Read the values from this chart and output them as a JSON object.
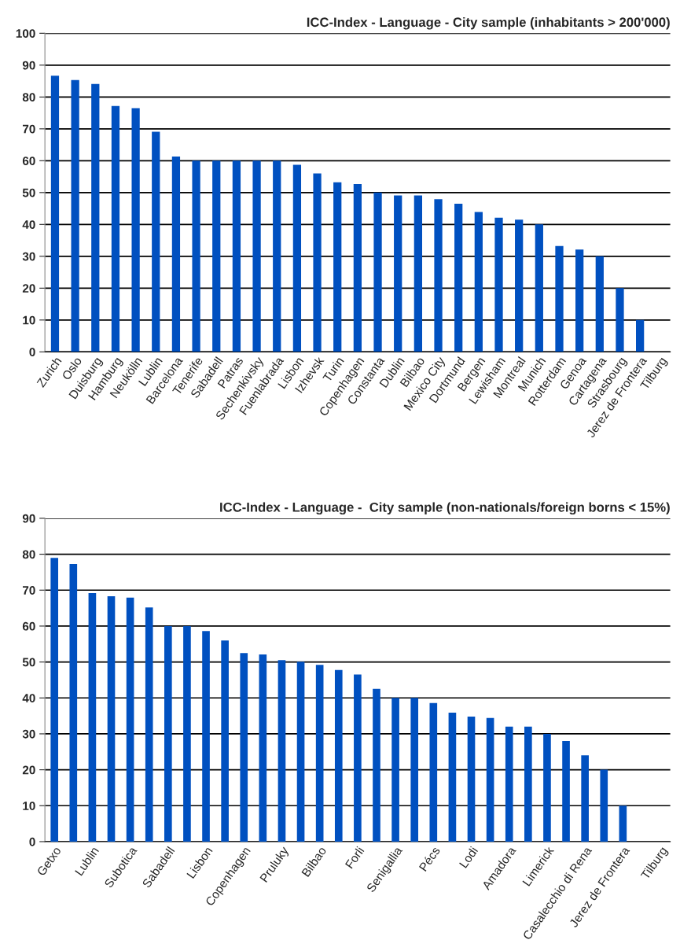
{
  "chart_data": [
    {
      "type": "bar",
      "title": "ICC-Index - Language - City sample (inhabitants > 200'000)",
      "categories": [
        "Zurich",
        "Oslo",
        "Duisburg",
        "Hamburg",
        "Neukölln",
        "Lublin",
        "Barcelona",
        "Tenerife",
        "Sabadell",
        "Patras",
        "Sechenkivsky",
        "Fuenlabrada",
        "Lisbon",
        "Izhevsk",
        "Turin",
        "Copenhagen",
        "Constanta",
        "Dublin",
        "Bilbao",
        "Mexico City",
        "Dortmund",
        "Bergen",
        "Lewisham",
        "Montreal",
        "Munich",
        "Rotterdam",
        "Genoa",
        "Cartagena",
        "Strasbourg",
        "Jerez de Frontera",
        "Tilburg"
      ],
      "values": [
        86.7,
        85.3,
        84.1,
        77.2,
        76.5,
        69.1,
        61.3,
        60,
        60,
        60,
        60,
        60,
        58.7,
        56,
        53.2,
        52.7,
        50,
        49.1,
        49.1,
        47.9,
        46.5,
        43.9,
        42.1,
        41.5,
        40,
        33.2,
        32.1,
        30,
        20,
        10,
        0
      ],
      "color": "#0050c0",
      "ylim": [
        0,
        100
      ],
      "yticks": [
        0,
        10,
        20,
        30,
        40,
        50,
        60,
        70,
        80,
        90,
        100
      ],
      "grid": "y"
    },
    {
      "type": "bar",
      "title": "ICC-Index - Language -  City sample (non-nationals/foreign borns < 15%)",
      "categories": [
        "Getxo",
        null,
        "Lublin",
        null,
        "Subotica",
        null,
        "Sabadell",
        null,
        "Lisbon",
        null,
        "Copenhagen",
        null,
        "Pruluky",
        null,
        "Bilbao",
        null,
        "Forli",
        null,
        "Senigallia",
        null,
        "Pécs",
        null,
        "Lodi",
        null,
        "Amadora",
        null,
        "Limerick",
        null,
        "Casalecchio di Rena",
        null,
        "Jerez de Frontera",
        null,
        "Tilburg"
      ],
      "values": [
        79,
        77.3,
        69.2,
        68.3,
        67.9,
        65.2,
        60,
        60,
        58.6,
        56,
        52.5,
        52.1,
        50.5,
        50.1,
        49.2,
        47.8,
        46.5,
        42.5,
        40,
        40,
        38.6,
        35.9,
        34.8,
        34.4,
        32,
        32,
        30,
        28,
        24,
        20,
        10,
        0,
        0
      ],
      "color": "#0050c0",
      "ylim": [
        0,
        90
      ],
      "yticks": [
        0,
        10,
        20,
        30,
        40,
        50,
        60,
        70,
        80,
        90
      ],
      "grid": "y"
    }
  ]
}
